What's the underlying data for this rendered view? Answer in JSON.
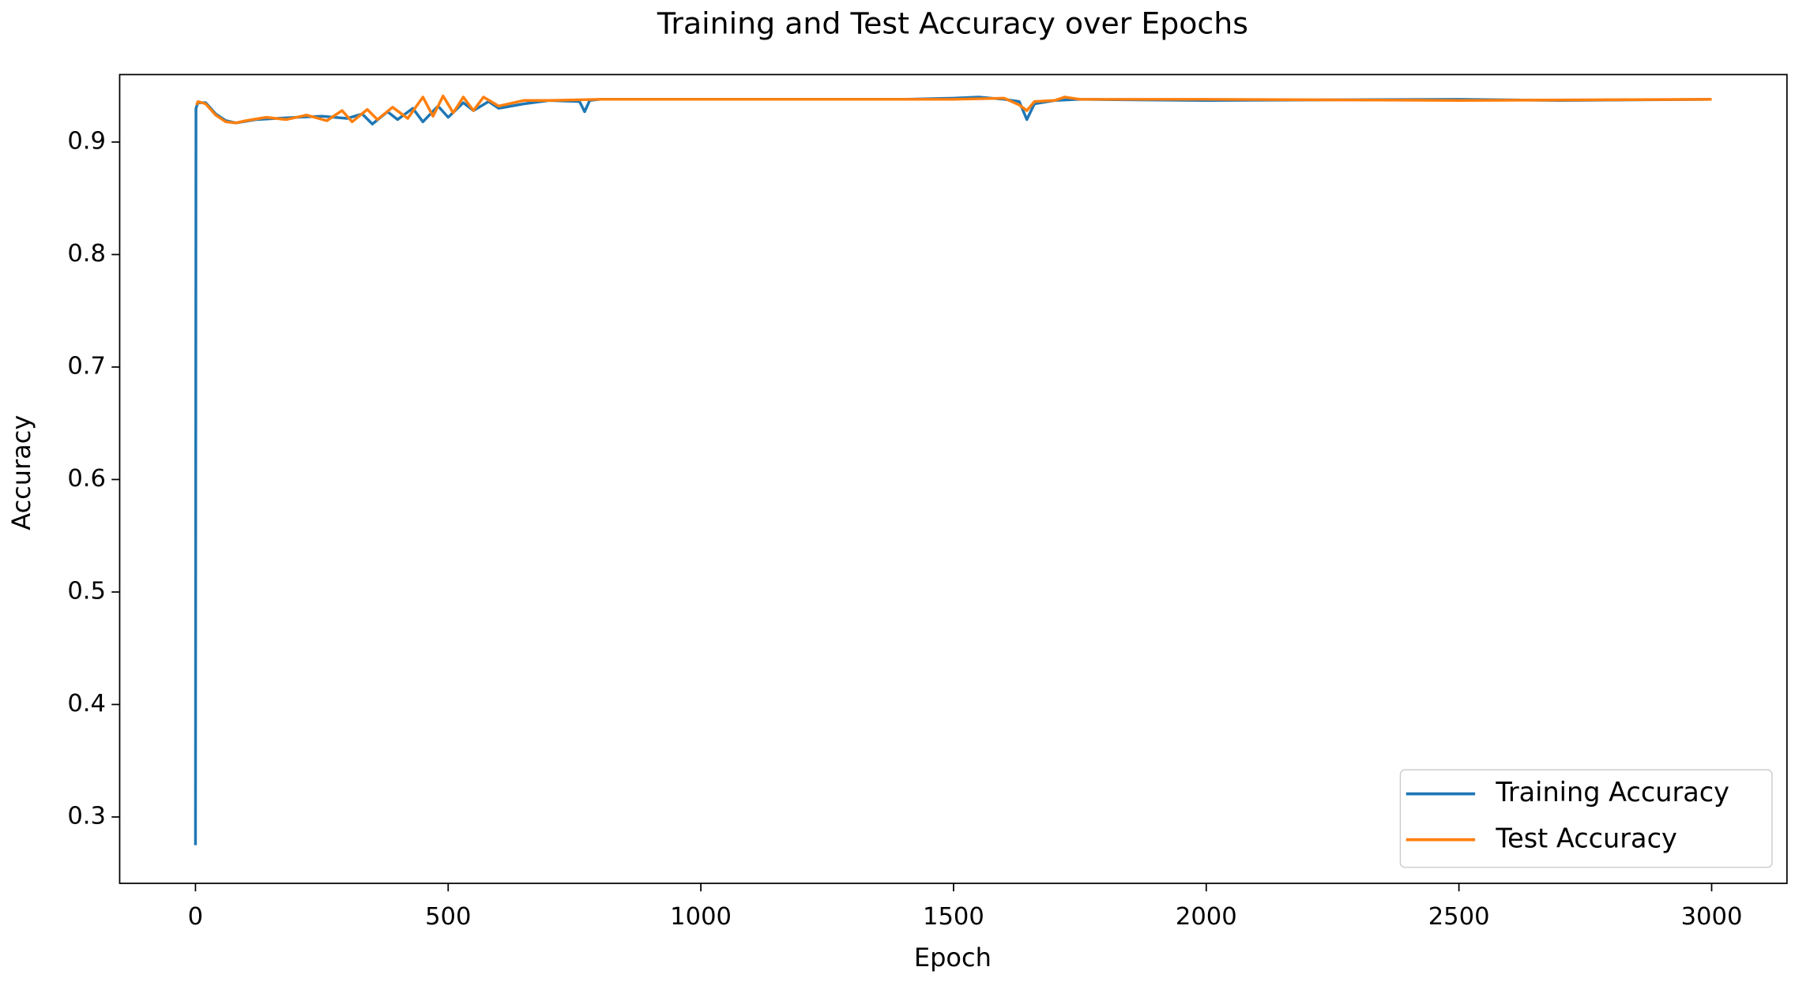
{
  "chart_data": {
    "type": "line",
    "title": "Training and Test Accuracy over Epochs",
    "x_label": "Epoch",
    "y_label": "Accuracy",
    "xlim": [
      -150,
      3149
    ],
    "ylim": [
      0.241,
      0.96
    ],
    "xticks": [
      0,
      500,
      1000,
      1500,
      2000,
      2500,
      3000
    ],
    "yticks": [
      0.3,
      0.4,
      0.5,
      0.6,
      0.7,
      0.8,
      0.9
    ],
    "grid": false,
    "legend_loc": "lower right",
    "series": [
      {
        "name": "Training Accuracy",
        "color": "#1f77b4",
        "x": [
          0,
          1,
          5,
          20,
          40,
          60,
          80,
          120,
          160,
          200,
          250,
          300,
          330,
          350,
          380,
          400,
          430,
          450,
          480,
          500,
          530,
          550,
          580,
          600,
          650,
          700,
          760,
          770,
          780,
          800,
          900,
          1000,
          1200,
          1400,
          1500,
          1550,
          1600,
          1630,
          1645,
          1660,
          1700,
          1750,
          2000,
          2500,
          2700,
          3000
        ],
        "values": [
          0.275,
          0.93,
          0.935,
          0.935,
          0.925,
          0.919,
          0.917,
          0.92,
          0.921,
          0.922,
          0.923,
          0.921,
          0.925,
          0.916,
          0.927,
          0.92,
          0.93,
          0.918,
          0.932,
          0.922,
          0.935,
          0.928,
          0.936,
          0.93,
          0.934,
          0.937,
          0.936,
          0.927,
          0.937,
          0.938,
          0.938,
          0.938,
          0.938,
          0.938,
          0.939,
          0.94,
          0.938,
          0.936,
          0.92,
          0.934,
          0.937,
          0.938,
          0.937,
          0.938,
          0.937,
          0.938
        ]
      },
      {
        "name": "Test Accuracy",
        "color": "#ff7f0e",
        "x": [
          2,
          5,
          20,
          40,
          60,
          80,
          100,
          140,
          180,
          220,
          260,
          290,
          310,
          340,
          360,
          390,
          420,
          450,
          470,
          490,
          510,
          530,
          550,
          570,
          600,
          650,
          700,
          800,
          1000,
          1200,
          1500,
          1600,
          1630,
          1645,
          1660,
          1700,
          1720,
          1750,
          2000,
          2500,
          3000
        ],
        "values": [
          0.933,
          0.936,
          0.934,
          0.924,
          0.918,
          0.917,
          0.919,
          0.922,
          0.92,
          0.924,
          0.919,
          0.928,
          0.918,
          0.929,
          0.92,
          0.931,
          0.921,
          0.94,
          0.923,
          0.941,
          0.926,
          0.94,
          0.928,
          0.94,
          0.932,
          0.937,
          0.937,
          0.938,
          0.938,
          0.938,
          0.938,
          0.939,
          0.933,
          0.928,
          0.936,
          0.937,
          0.94,
          0.938,
          0.938,
          0.937,
          0.938
        ]
      }
    ]
  }
}
